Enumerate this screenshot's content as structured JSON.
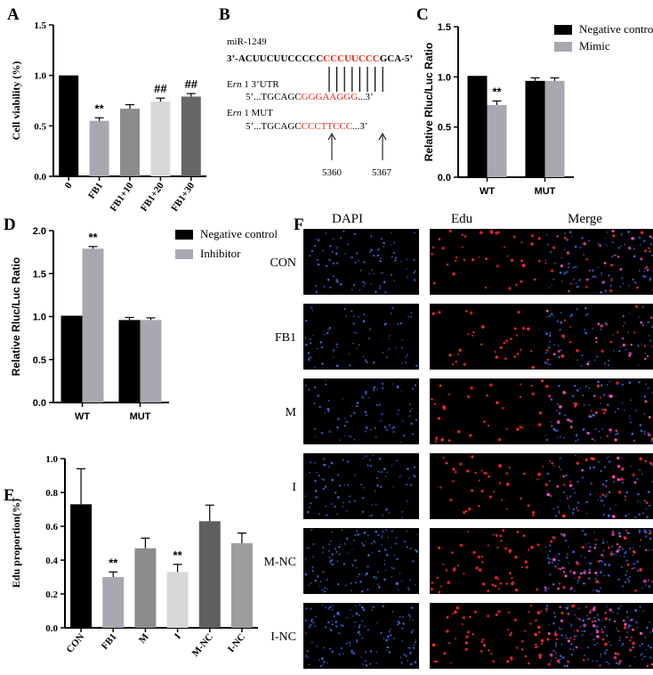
{
  "panels": {
    "A": "A",
    "B": "B",
    "C": "C",
    "D": "D",
    "E": "E",
    "F": "F"
  },
  "chart_data": [
    {
      "id": "A",
      "type": "bar",
      "categories": [
        "0",
        "FB1",
        "FB1+10",
        "FB1+20",
        "FB1+30"
      ],
      "values": [
        1.0,
        0.55,
        0.67,
        0.74,
        0.79
      ],
      "errors": [
        0,
        0.03,
        0.04,
        0.035,
        0.03
      ],
      "colors": [
        "#000000",
        "#a9a8b0",
        "#8b8b8b",
        "#d8d8d8",
        "#666666"
      ],
      "marks": [
        "",
        "**",
        "",
        "##",
        "##"
      ],
      "ylabel": "Cell viability (%)",
      "ylim": [
        0,
        1.5
      ],
      "yticks": [
        "0.0",
        "0.5",
        "1.0",
        "1.5"
      ],
      "grid": false
    },
    {
      "id": "C",
      "type": "bar",
      "categories": [
        "WT",
        "MUT"
      ],
      "series": [
        {
          "name": "Negative control",
          "color": "#000000",
          "values": [
            1.01,
            0.96
          ],
          "errors": [
            0,
            0.03
          ]
        },
        {
          "name": "Mimic",
          "color": "#a9a8b0",
          "values": [
            0.72,
            0.96
          ],
          "errors": [
            0.04,
            0.03
          ]
        }
      ],
      "marks": [
        [
          "",
          "**"
        ],
        [
          "",
          ""
        ]
      ],
      "ylabel": "Relative Rluc/Luc Ratio",
      "ylim": [
        0,
        1.5
      ],
      "yticks": [
        "0.0",
        "0.5",
        "1.0",
        "1.5"
      ],
      "legend": "top-right",
      "grid": false
    },
    {
      "id": "D",
      "type": "bar",
      "categories": [
        "WT",
        "MUT"
      ],
      "series": [
        {
          "name": "Negative control",
          "color": "#000000",
          "values": [
            1.01,
            0.96
          ],
          "errors": [
            0,
            0.03
          ]
        },
        {
          "name": "Inhibitor",
          "color": "#a9a8b0",
          "values": [
            1.79,
            0.96
          ],
          "errors": [
            0.025,
            0.025
          ]
        }
      ],
      "marks": [
        [
          "",
          "**"
        ],
        [
          "",
          ""
        ]
      ],
      "ylabel": "Relative Rluc/Luc Ratio",
      "ylim": [
        0,
        2.0
      ],
      "yticks": [
        "0.0",
        "0.5",
        "1.0",
        "1.5",
        "2.0"
      ],
      "legend": "top-right",
      "grid": false
    },
    {
      "id": "E",
      "type": "bar",
      "categories": [
        "CON",
        "FB1",
        "M",
        "I",
        "M-NC",
        "I-NC"
      ],
      "values": [
        0.73,
        0.3,
        0.47,
        0.33,
        0.63,
        0.5
      ],
      "errors": [
        0.21,
        0.03,
        0.06,
        0.045,
        0.095,
        0.06
      ],
      "colors": [
        "#000000",
        "#a9a8b0",
        "#8b8b8b",
        "#d8d8d8",
        "#5f5f5f",
        "#9d9d9d"
      ],
      "marks": [
        "",
        "**",
        "",
        "**",
        "",
        ""
      ],
      "ylabel": "Edu proportion(%)",
      "ylim": [
        0,
        1.0
      ],
      "yticks": [
        "0.0",
        "0.2",
        "0.4",
        "0.6",
        "0.8",
        "1.0"
      ],
      "grid": false
    }
  ],
  "panelB": {
    "mirna": "miR-1249",
    "seq_prefix": "3’-ACUUCUUCCCCC",
    "seq_red": "CCCUUCCC",
    "seq_suffix": "GCA-5’",
    "utr_label_pre": "E",
    "utr_label_ital": "rn",
    "utr_label_post": "  1 3’UTR",
    "utr_seq_pre": "5’...TGCAGC",
    "utr_seq_red": "GGGAAGGG",
    "utr_seq_post": "...3’",
    "mut_label_pre": "E",
    "mut_label_ital": "rn",
    "mut_label_post": "  1 MUT",
    "mut_seq_pre": "5’...TGCAGC",
    "mut_seq_red": "CCCTTCCC",
    "mut_seq_post": "...3’",
    "pos_start": "5360",
    "pos_end": "5367"
  },
  "panelF": {
    "columns": [
      "DAPI",
      "Edu",
      "Merge"
    ],
    "rows": [
      "CON",
      "FB1",
      "M",
      "I",
      "M-NC",
      "I-NC"
    ],
    "dapi_color": "#3d6be8",
    "edu_color": "#ff2a2a"
  }
}
